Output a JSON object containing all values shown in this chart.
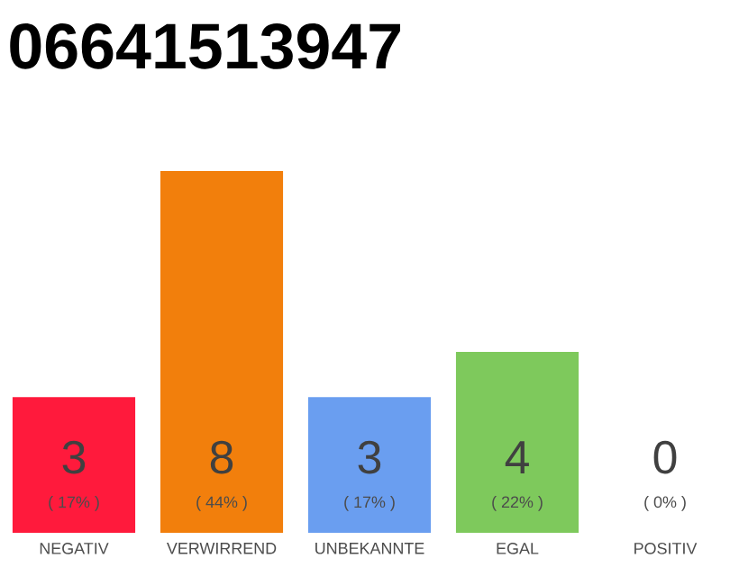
{
  "chart_data": {
    "type": "bar",
    "title": "06641513947",
    "categories": [
      "NEGATIV",
      "VERWIRREND",
      "UNBEKANNTE",
      "EGAL",
      "POSITIV"
    ],
    "values": [
      3,
      8,
      3,
      4,
      0
    ],
    "colors": [
      "#ff1a3c",
      "#f27f0c",
      "#6a9ef0",
      "#7ec95c",
      "#cccccc"
    ],
    "data_labels": true,
    "annotations": [
      "( 17% )",
      "( 44% )",
      "( 17% )",
      "( 22% )",
      "( 0% )"
    ]
  }
}
